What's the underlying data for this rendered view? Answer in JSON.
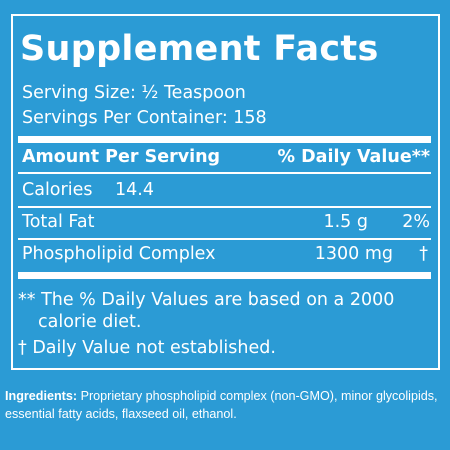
{
  "title": "Supplement Facts",
  "serving_size": "Serving Size: ½ Teaspoon",
  "servings_per_container": "Servings Per Container: 158",
  "header": {
    "amount": "Amount Per Serving",
    "daily_value": "% Daily Value**"
  },
  "rows": [
    [
      "Calories",
      "14.4"
    ],
    [
      "Total Fat",
      "1.5 g",
      "2%"
    ],
    [
      "Phospholipid Complex",
      "1300 mg",
      "†"
    ]
  ],
  "footnotes": [
    "** The % Daily Values are based on a 2000",
    "calorie diet.",
    "† Daily Value not established."
  ],
  "ingredients": {
    "label": "Ingredients:",
    "text": "Proprietary phospholipid complex (non-GMO), minor glycolipids, essential fatty acids, flaxseed oil, ethanol."
  }
}
